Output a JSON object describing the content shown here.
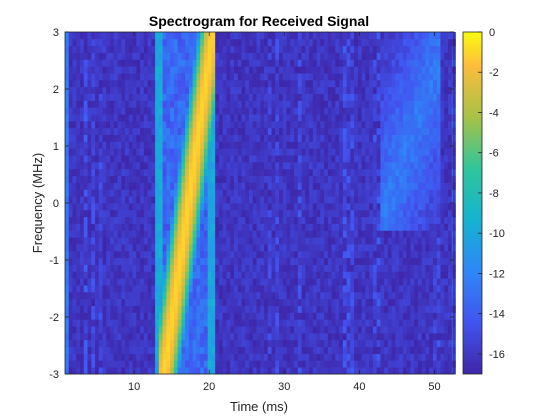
{
  "chart_data": {
    "type": "heatmap",
    "title": "Spectrogram for Received Signal",
    "xlabel": "Time (ms)",
    "ylabel": "Frequency (MHz)",
    "xlim": [
      0.8,
      52.6
    ],
    "ylim": [
      -3,
      3
    ],
    "x_ticks": [
      "10",
      "20",
      "30",
      "40",
      "50"
    ],
    "y_ticks": [
      "-3",
      "-2",
      "-1",
      "0",
      "1",
      "2",
      "3"
    ],
    "colorbar": {
      "colormap": "parula",
      "clim": [
        -17,
        0
      ],
      "ticks": [
        "0",
        "-2",
        "-4",
        "-6",
        "-8",
        "-10",
        "-12",
        "-14",
        "-16"
      ]
    },
    "features": {
      "background_level_db": -16,
      "chirp": {
        "t_start_ms": 14.0,
        "t_end_ms": 20.5,
        "f_start_mhz": -3,
        "f_end_mhz": 3,
        "peak_db": -1
      },
      "pulse_edges_ms": [
        13.5,
        20.5
      ],
      "edge_level_db": -10,
      "secondary_region": {
        "t_range_ms": [
          43,
          51
        ],
        "f_range_mhz": [
          -0.5,
          3
        ],
        "level_db": -12.5
      }
    }
  }
}
